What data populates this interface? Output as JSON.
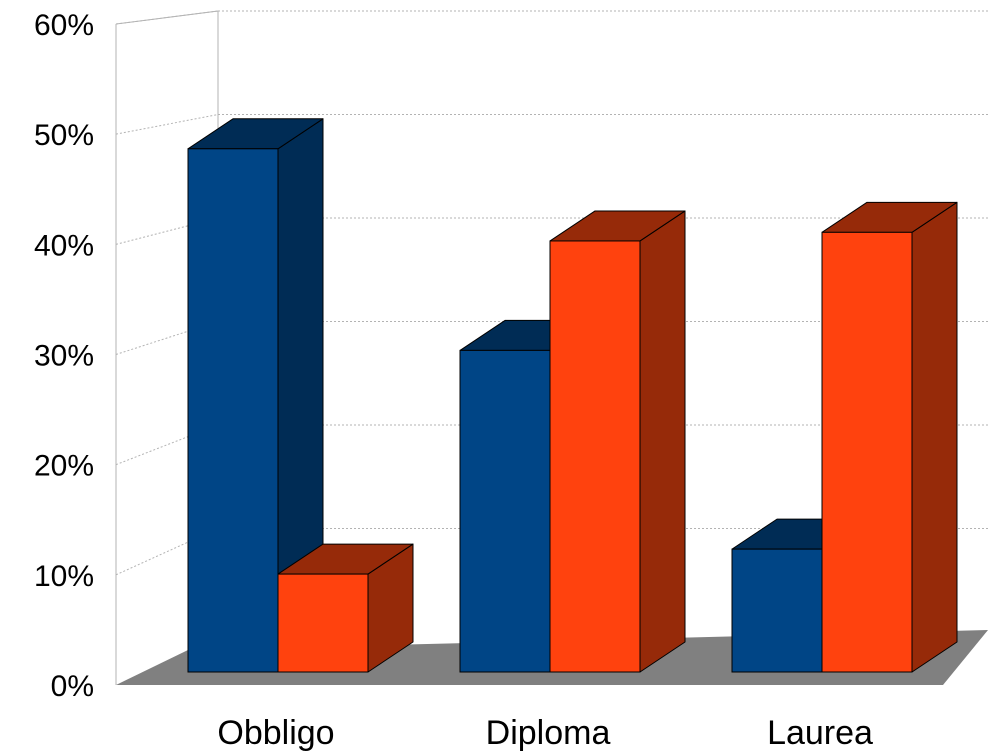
{
  "chart_data": {
    "type": "bar",
    "categories": [
      "Obbligo",
      "Diploma",
      "Laurea"
    ],
    "series": [
      {
        "values": [
          54.5,
          33.5,
          12.8
        ],
        "color": "#004586",
        "side_color": "#002c55"
      },
      {
        "values": [
          10.2,
          44.9,
          45.8
        ],
        "color": "#ff420e",
        "side_color": "#962a09"
      }
    ],
    "y_ticks": [
      "0%",
      "10%",
      "20%",
      "30%",
      "40%",
      "50%",
      "60%"
    ],
    "ylim": [
      0,
      60
    ],
    "grid": true,
    "floor_color": "#808080"
  }
}
